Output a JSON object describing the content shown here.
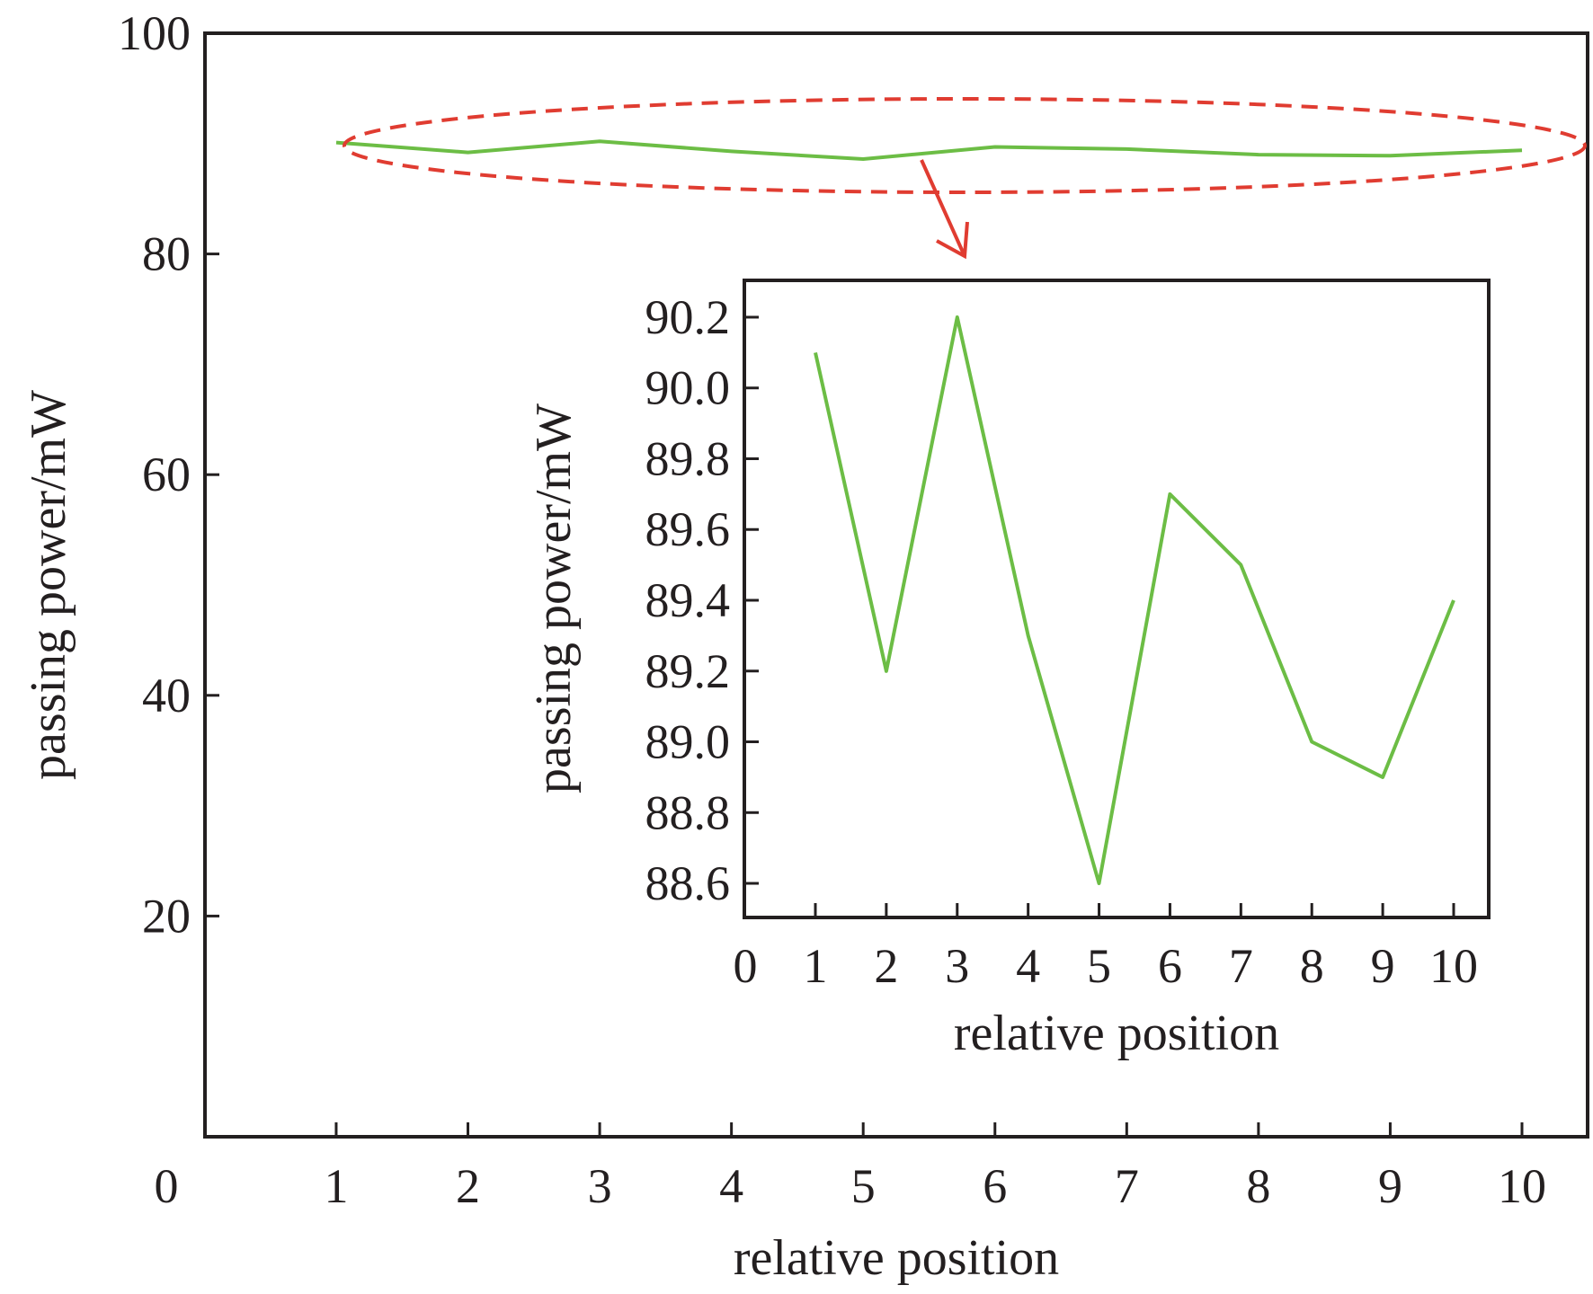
{
  "chart_data": [
    {
      "type": "line",
      "x": [
        1,
        2,
        3,
        4,
        5,
        6,
        7,
        8,
        9,
        10
      ],
      "series": [
        {
          "values": [
            90.1,
            89.2,
            90.2,
            89.3,
            88.6,
            89.7,
            89.5,
            89.0,
            88.9,
            89.4
          ],
          "color": "#6cbd45"
        }
      ],
      "xlabel": "relative position",
      "ylabel": "passing power/mW",
      "xlim": [
        0,
        10
      ],
      "ylim": [
        0,
        100
      ],
      "xticks": [
        "0",
        "1",
        "2",
        "3",
        "4",
        "5",
        "6",
        "7",
        "8",
        "9",
        "10"
      ],
      "yticks": [
        "20",
        "40",
        "60",
        "80",
        "100"
      ],
      "grid": false,
      "annotation": {
        "shape": "dashed-ellipse",
        "color": "#e03c31"
      }
    },
    {
      "type": "line",
      "x": [
        1,
        2,
        3,
        4,
        5,
        6,
        7,
        8,
        9,
        10
      ],
      "series": [
        {
          "values": [
            90.1,
            89.2,
            90.2,
            89.3,
            88.6,
            89.7,
            89.5,
            89.0,
            88.9,
            89.4
          ],
          "color": "#6cbd45"
        }
      ],
      "xlabel": "relative position",
      "ylabel": "passing power/mW",
      "xlim": [
        0,
        10
      ],
      "ylim": [
        88.5,
        90.3
      ],
      "xticks": [
        "0",
        "1",
        "2",
        "3",
        "4",
        "5",
        "6",
        "7",
        "8",
        "9",
        "10"
      ],
      "yticks": [
        "88.6",
        "88.8",
        "89.0",
        "89.2",
        "89.4",
        "89.6",
        "89.8",
        "90.0",
        "90.2"
      ],
      "grid": false
    }
  ]
}
